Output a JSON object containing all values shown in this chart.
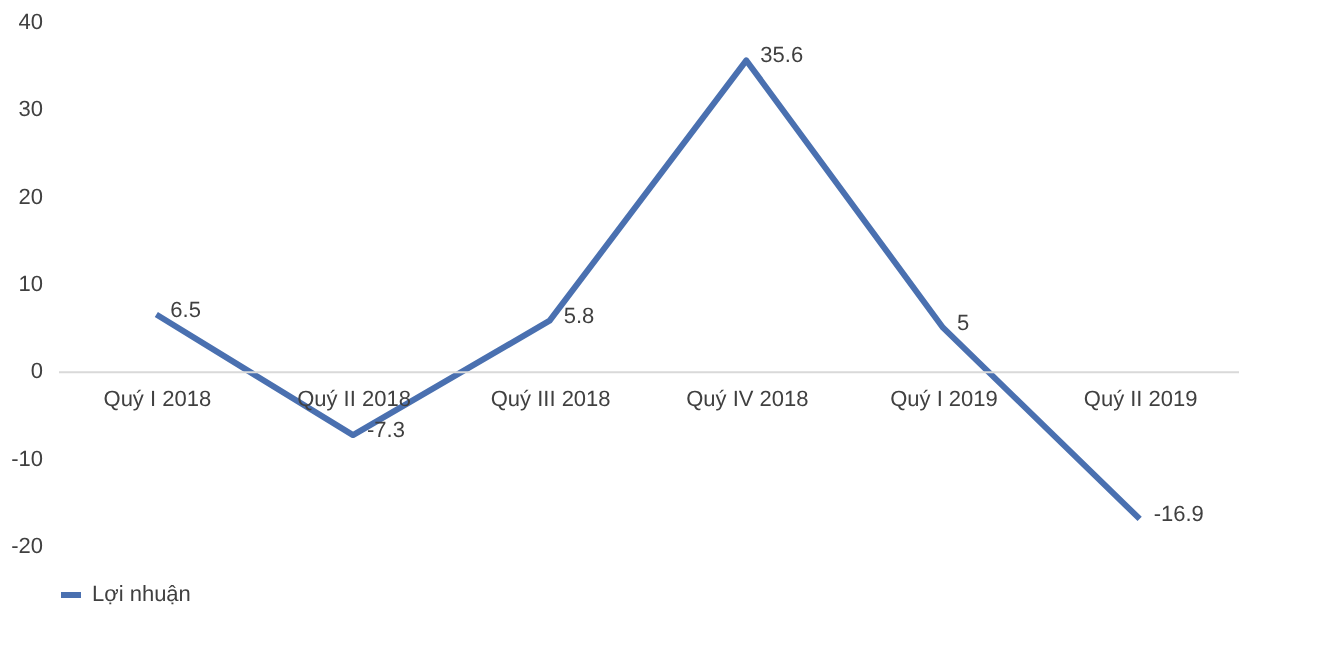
{
  "chart_data": {
    "type": "line",
    "categories": [
      "Quý I 2018",
      "Quý II 2018",
      "Quý III 2018",
      "Quý IV 2018",
      "Quý I 2019",
      "Quý II 2019"
    ],
    "series": [
      {
        "name": "Lợi nhuận",
        "color": "#4a70b0",
        "values": [
          6.5,
          -7.3,
          5.8,
          35.6,
          5,
          -16.9
        ]
      }
    ],
    "ylim": [
      -20,
      40
    ],
    "yticks": [
      -20,
      -10,
      0,
      10,
      20,
      30,
      40
    ],
    "grid": false,
    "legend": "bottom",
    "data_labels": true,
    "marker": "none",
    "line_style": "solid"
  }
}
